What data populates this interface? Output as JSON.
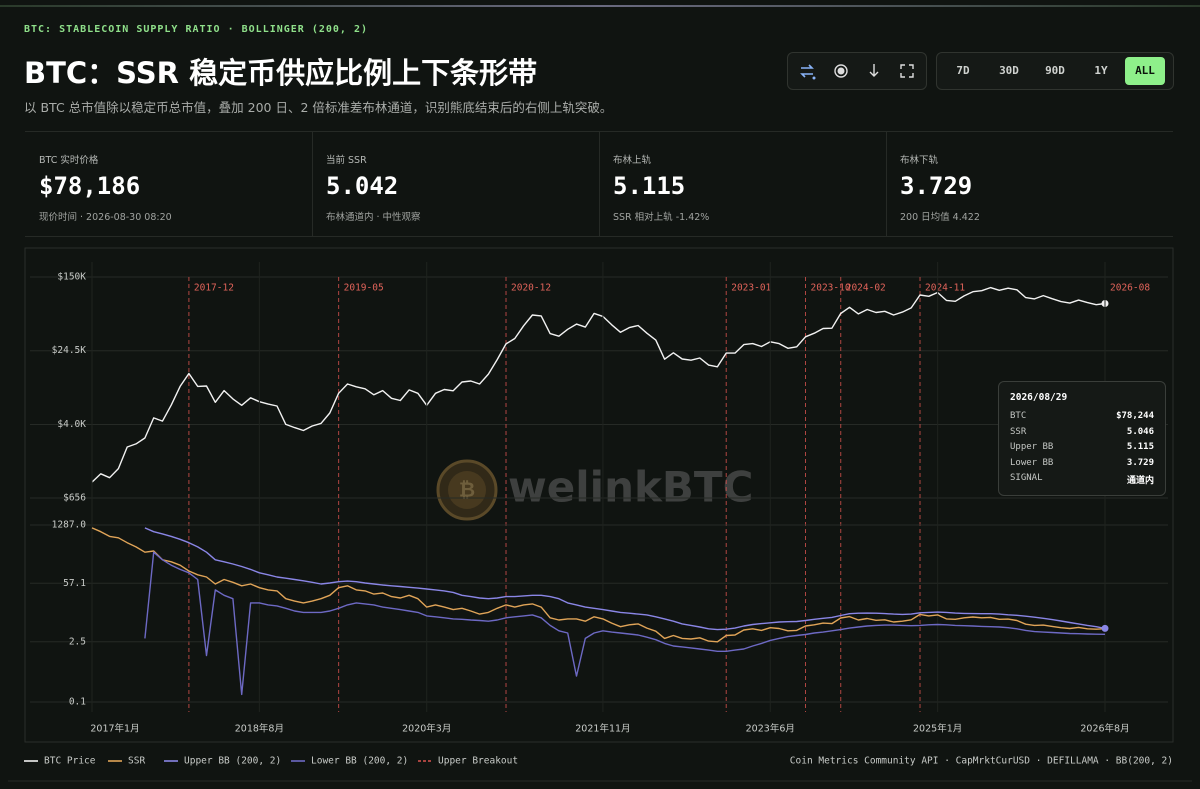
{
  "header": {
    "kicker": "BTC: STABLECOIN SUPPLY RATIO · BOLLINGER (200, 2)",
    "title": "BTC：SSR 稳定币供应比例上下条形带",
    "subtitle": "以 BTC 总市值除以稳定币总市值，叠加 200 日、2 倍标准差布林通道，识别熊底结束后的右侧上轨突破。"
  },
  "controls": {
    "ranges": [
      "7D",
      "30D",
      "90D",
      "1Y",
      "ALL"
    ],
    "active": "ALL"
  },
  "stats": [
    {
      "label": "BTC 实时价格",
      "value": "$78,186",
      "note": "现价时间 · 2026-08-30 08:20"
    },
    {
      "label": "当前 SSR",
      "value": "5.042",
      "note": "布林通道内 · 中性观察"
    },
    {
      "label": "布林上轨",
      "value": "5.115",
      "note": "SSR 相对上轨 -1.42%"
    },
    {
      "label": "布林下轨",
      "value": "3.729",
      "note": "200 日均值 4.422"
    }
  ],
  "watermark": "welinkBTC",
  "tooltip": {
    "date": "2026/08/29",
    "rows": [
      [
        "BTC",
        "$78,244"
      ],
      [
        "SSR",
        "5.046"
      ],
      [
        "Upper BB",
        "5.115"
      ],
      [
        "Lower BB",
        "3.729"
      ],
      [
        "SIGNAL",
        "通道内"
      ]
    ]
  },
  "legend_extra": "Upper Breakout",
  "source": "Coin Metrics Community API · CapMrktCurUSD · DEFILLAMA · BB(200, 2)",
  "chart_data": [
    {
      "type": "line",
      "yscale": "log",
      "grid": true,
      "x": [
        "2017-01",
        "2017-02",
        "2017-03",
        "2017-04",
        "2017-05",
        "2017-06",
        "2017-07",
        "2017-08",
        "2017-09",
        "2017-10",
        "2017-11",
        "2017-12",
        "2018-01",
        "2018-02",
        "2018-03",
        "2018-04",
        "2018-05",
        "2018-06",
        "2018-07",
        "2018-08",
        "2018-09",
        "2018-10",
        "2018-11",
        "2018-12",
        "2019-01",
        "2019-02",
        "2019-03",
        "2019-04",
        "2019-05",
        "2019-06",
        "2019-07",
        "2019-08",
        "2019-09",
        "2019-10",
        "2019-11",
        "2019-12",
        "2020-01",
        "2020-02",
        "2020-03",
        "2020-04",
        "2020-05",
        "2020-06",
        "2020-07",
        "2020-08",
        "2020-09",
        "2020-10",
        "2020-11",
        "2020-12",
        "2021-01",
        "2021-02",
        "2021-03",
        "2021-04",
        "2021-05",
        "2021-06",
        "2021-07",
        "2021-08",
        "2021-09",
        "2021-10",
        "2021-11",
        "2021-12",
        "2022-01",
        "2022-02",
        "2022-03",
        "2022-04",
        "2022-05",
        "2022-06",
        "2022-07",
        "2022-08",
        "2022-09",
        "2022-10",
        "2022-11",
        "2022-12",
        "2023-01",
        "2023-02",
        "2023-03",
        "2023-04",
        "2023-05",
        "2023-06",
        "2023-07",
        "2023-08",
        "2023-09",
        "2023-10",
        "2023-11",
        "2023-12",
        "2024-01",
        "2024-02",
        "2024-03",
        "2024-04",
        "2024-05",
        "2024-06",
        "2024-07",
        "2024-08",
        "2024-09",
        "2024-10",
        "2024-11",
        "2024-12",
        "2025-01",
        "2025-02",
        "2025-03",
        "2025-04",
        "2025-05",
        "2025-06",
        "2025-07",
        "2025-08",
        "2025-09",
        "2025-10",
        "2025-11",
        "2025-12",
        "2026-01",
        "2026-02",
        "2026-03",
        "2026-04",
        "2026-05",
        "2026-06",
        "2026-07",
        "2026-08"
      ],
      "ylim": [
        656,
        150000
      ],
      "yticks": [
        {
          "value": 656,
          "label": "$656"
        },
        {
          "value": 4000,
          "label": "$4.0K"
        },
        {
          "value": 24500,
          "label": "$24.5K"
        },
        {
          "value": 150000,
          "label": "$150K"
        }
      ],
      "breakouts": [
        "2017-12",
        "2019-05",
        "2020-12",
        "2023-01",
        "2023-10",
        "2024-02",
        "2024-11",
        "2026-08"
      ],
      "series": [
        {
          "name": "BTC Price",
          "color": "#f2f2f2",
          "marker_last": true,
          "values": [
            970,
            1190,
            1080,
            1350,
            2300,
            2480,
            2870,
            4700,
            4340,
            6470,
            10200,
            14000,
            10200,
            10300,
            6900,
            9200,
            7500,
            6400,
            7700,
            7000,
            6600,
            6300,
            4000,
            3700,
            3450,
            3850,
            4100,
            5300,
            8600,
            10800,
            10100,
            9600,
            8300,
            9200,
            7600,
            7200,
            9350,
            8600,
            6400,
            8600,
            9450,
            9140,
            11350,
            11650,
            10800,
            13800,
            19700,
            29000,
            33100,
            45200,
            58900,
            57700,
            37300,
            35000,
            41500,
            47100,
            43800,
            61300,
            57000,
            46300,
            38500,
            43200,
            45500,
            37700,
            31800,
            19900,
            23300,
            20000,
            19400,
            20500,
            17200,
            16500,
            23100,
            23100,
            28500,
            29200,
            27200,
            30500,
            29200,
            26000,
            27000,
            34500,
            37700,
            42300,
            42600,
            61200,
            71300,
            60600,
            67500,
            62700,
            64600,
            59000,
            63300,
            70200,
            96400,
            93400,
            102400,
            84400,
            82500,
            94200,
            104600,
            107100,
            115700,
            108200,
            114000,
            109500,
            90400,
            87500,
            95000,
            88000,
            82000,
            79000,
            85000,
            80000,
            76000,
            78186
          ]
        }
      ]
    },
    {
      "type": "line",
      "yscale": "log",
      "grid": true,
      "x": [
        "2017-01",
        "2017-02",
        "2017-03",
        "2017-04",
        "2017-05",
        "2017-06",
        "2017-07",
        "2017-08",
        "2017-09",
        "2017-10",
        "2017-11",
        "2017-12",
        "2018-01",
        "2018-02",
        "2018-03",
        "2018-04",
        "2018-05",
        "2018-06",
        "2018-07",
        "2018-08",
        "2018-09",
        "2018-10",
        "2018-11",
        "2018-12",
        "2019-01",
        "2019-02",
        "2019-03",
        "2019-04",
        "2019-05",
        "2019-06",
        "2019-07",
        "2019-08",
        "2019-09",
        "2019-10",
        "2019-11",
        "2019-12",
        "2020-01",
        "2020-02",
        "2020-03",
        "2020-04",
        "2020-05",
        "2020-06",
        "2020-07",
        "2020-08",
        "2020-09",
        "2020-10",
        "2020-11",
        "2020-12",
        "2021-01",
        "2021-02",
        "2021-03",
        "2021-04",
        "2021-05",
        "2021-06",
        "2021-07",
        "2021-08",
        "2021-09",
        "2021-10",
        "2021-11",
        "2021-12",
        "2022-01",
        "2022-02",
        "2022-03",
        "2022-04",
        "2022-05",
        "2022-06",
        "2022-07",
        "2022-08",
        "2022-09",
        "2022-10",
        "2022-11",
        "2022-12",
        "2023-01",
        "2023-02",
        "2023-03",
        "2023-04",
        "2023-05",
        "2023-06",
        "2023-07",
        "2023-08",
        "2023-09",
        "2023-10",
        "2023-11",
        "2023-12",
        "2024-01",
        "2024-02",
        "2024-03",
        "2024-04",
        "2024-05",
        "2024-06",
        "2024-07",
        "2024-08",
        "2024-09",
        "2024-10",
        "2024-11",
        "2024-12",
        "2025-01",
        "2025-02",
        "2025-03",
        "2025-04",
        "2025-05",
        "2025-06",
        "2025-07",
        "2025-08",
        "2025-09",
        "2025-10",
        "2025-11",
        "2025-12",
        "2026-01",
        "2026-02",
        "2026-03",
        "2026-04",
        "2026-05",
        "2026-06",
        "2026-07",
        "2026-08"
      ],
      "xticks": [
        {
          "value": "2017-01",
          "label": "2017年1月"
        },
        {
          "value": "2018-08",
          "label": "2018年8月"
        },
        {
          "value": "2020-03",
          "label": "2020年3月"
        },
        {
          "value": "2021-11",
          "label": "2021年11月"
        },
        {
          "value": "2023-06",
          "label": "2023年6月"
        },
        {
          "value": "2025-01",
          "label": "2025年1月"
        },
        {
          "value": "2026-08",
          "label": "2026年8月"
        }
      ],
      "ylim": [
        0.1,
        1287
      ],
      "yticks": [
        0.1,
        2.5,
        57.1,
        {
          "value": 1287,
          "label": "1287.0"
        }
      ],
      "series": [
        {
          "name": "SSR",
          "color": "#e0a458",
          "values": [
            1100,
            900,
            700,
            650,
            500,
            400,
            300,
            320,
            200,
            180,
            150,
            110,
            90,
            80,
            55,
            70,
            60,
            50,
            55,
            45,
            40,
            38,
            25,
            22,
            20,
            22,
            25,
            30,
            45,
            50,
            40,
            38,
            32,
            34,
            28,
            26,
            30,
            25,
            16,
            18,
            16,
            14,
            15,
            13,
            11,
            12,
            15,
            18,
            16,
            18,
            19,
            16,
            9,
            8,
            8.5,
            8.5,
            7.5,
            9.5,
            8.5,
            6.8,
            5.6,
            6.2,
            6.5,
            5.2,
            4.4,
            3.0,
            3.5,
            3.0,
            2.9,
            3.1,
            2.6,
            2.5,
            3.5,
            3.6,
            4.7,
            5.0,
            4.6,
            5.3,
            5.1,
            4.5,
            4.6,
            5.8,
            6.2,
            6.8,
            6.6,
            8.9,
            9.6,
            8.0,
            8.7,
            7.9,
            8.1,
            7.2,
            7.5,
            8.1,
            10.8,
            10.0,
            10.5,
            8.5,
            8.3,
            9.0,
            9.4,
            9.0,
            9.2,
            8.3,
            8.4,
            7.8,
            6.4,
            6.0,
            6.1,
            5.7,
            5.3,
            5.1,
            5.4,
            5.0,
            4.9,
            5.042
          ]
        },
        {
          "name": "Upper BB (200, 2)",
          "color": "#8a86e6",
          "marker_last": true,
          "values": [
            null,
            null,
            null,
            null,
            null,
            null,
            1100,
            900,
            800,
            700,
            600,
            500,
            400,
            300,
            200,
            180,
            160,
            140,
            120,
            100,
            90,
            80,
            75,
            70,
            65,
            60,
            55,
            58,
            62,
            64,
            62,
            58,
            55,
            52,
            50,
            48,
            46,
            44,
            42,
            40,
            38,
            35,
            30,
            28,
            26,
            25,
            26,
            28,
            28,
            29,
            30,
            30,
            28,
            25,
            20,
            18,
            16,
            15,
            14,
            13,
            12,
            11.5,
            11,
            10.5,
            9.5,
            8.5,
            7.5,
            6.5,
            6,
            5.5,
            5,
            4.8,
            4.9,
            5.2,
            5.8,
            6.3,
            6.6,
            6.9,
            7.2,
            7.3,
            7.4,
            7.8,
            8.3,
            8.8,
            9.2,
            10.2,
            11.2,
            11.5,
            11.6,
            11.5,
            11.3,
            11.0,
            10.8,
            11.0,
            11.8,
            12.0,
            12.2,
            12.0,
            11.6,
            11.4,
            11.3,
            11.2,
            11.2,
            11.0,
            10.6,
            10.3,
            9.8,
            9.3,
            8.8,
            8.2,
            7.6,
            7.0,
            6.5,
            6.0,
            5.6,
            5.115
          ]
        },
        {
          "name": "Lower BB (200, 2)",
          "color": "#6d69c4",
          "values": [
            null,
            null,
            null,
            null,
            null,
            null,
            3.0,
            300,
            200,
            150,
            120,
            100,
            70,
            1.2,
            40,
            30,
            25,
            0.15,
            20,
            20,
            18,
            17,
            15,
            13,
            12,
            12,
            12,
            13,
            15,
            18,
            20,
            19,
            18,
            16,
            15,
            14,
            13,
            12,
            10,
            9.5,
            9,
            8.5,
            8.3,
            8,
            7.8,
            7.5,
            8,
            9,
            9.5,
            10,
            10.5,
            9,
            6,
            4.5,
            4.0,
            0.4,
            3.0,
            4.0,
            4.5,
            4.2,
            4.0,
            3.8,
            3.6,
            3.2,
            2.8,
            2.3,
            2.0,
            1.9,
            1.8,
            1.7,
            1.6,
            1.5,
            1.5,
            1.6,
            1.7,
            2.0,
            2.3,
            2.7,
            3.0,
            3.3,
            3.5,
            3.7,
            4.0,
            4.2,
            4.5,
            4.8,
            5.2,
            5.5,
            5.8,
            6.0,
            6.1,
            6.1,
            6.0,
            5.9,
            6.0,
            6.2,
            6.3,
            6.2,
            6.0,
            5.9,
            5.8,
            5.7,
            5.6,
            5.5,
            5.3,
            5.0,
            4.6,
            4.3,
            4.2,
            4.1,
            4.0,
            3.9,
            3.85,
            3.8,
            3.75,
            3.729
          ]
        }
      ]
    }
  ]
}
